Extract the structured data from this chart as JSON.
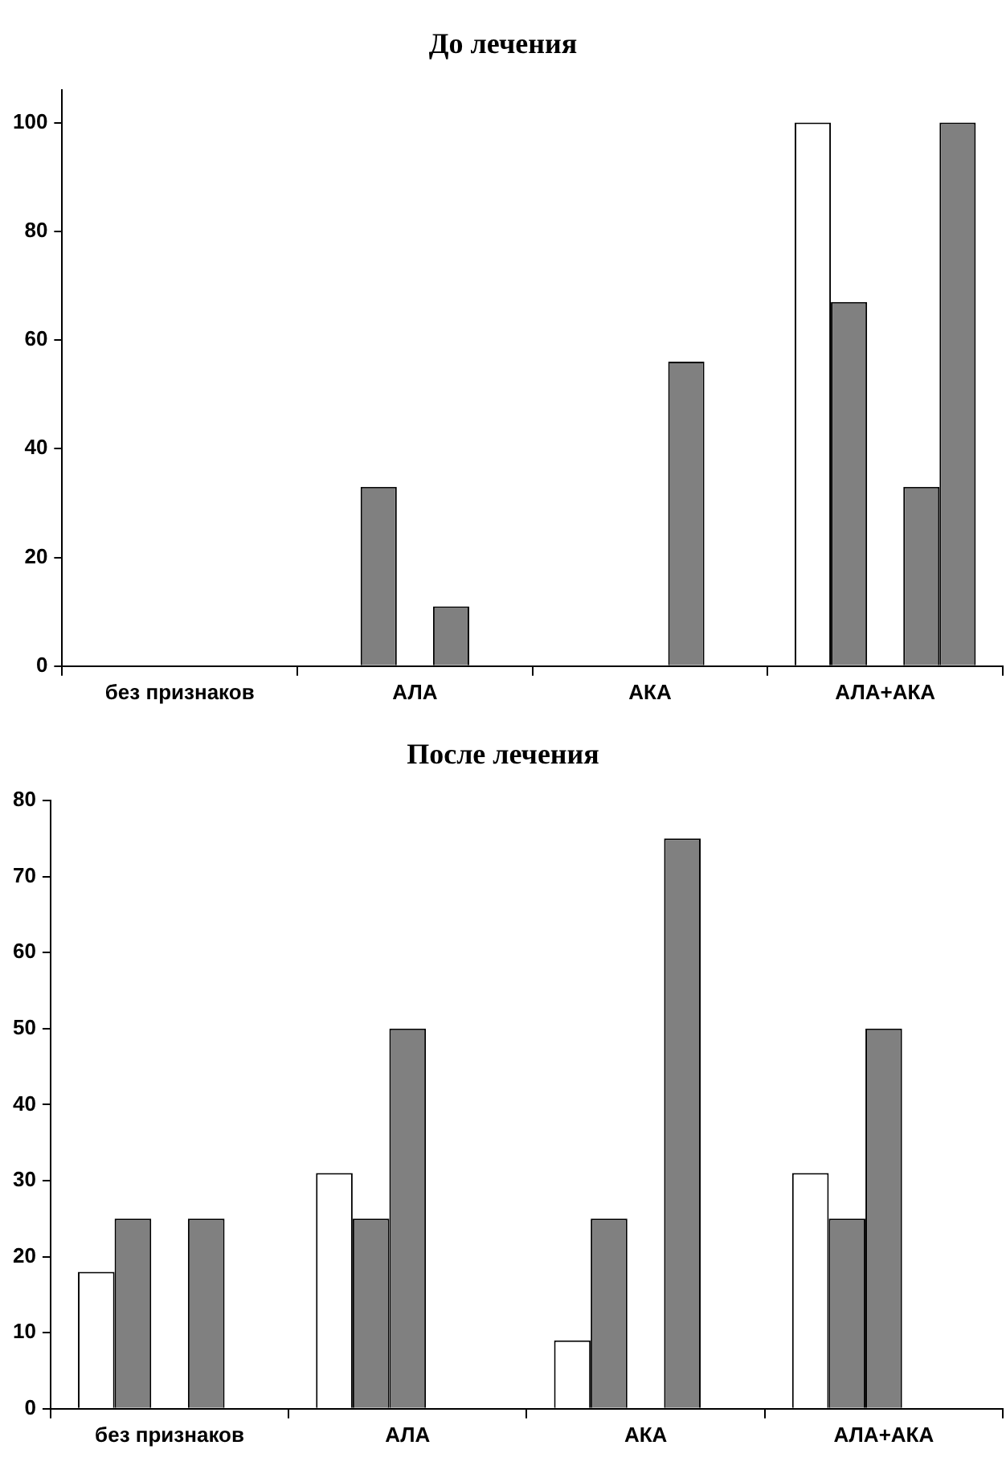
{
  "chart_data": [
    {
      "type": "bar",
      "title": "До лечения",
      "categories": [
        "без признаков",
        "АЛА",
        "АКА",
        "АЛА+АКА"
      ],
      "series": [
        {
          "color": "#ffffff",
          "values": [
            null,
            null,
            null,
            100
          ]
        },
        {
          "color": "#808080",
          "values": [
            null,
            33,
            null,
            67
          ]
        },
        {
          "color": "#808080",
          "values": [
            null,
            null,
            null,
            null
          ]
        },
        {
          "color": "#808080",
          "values": [
            null,
            11,
            56,
            33
          ]
        },
        {
          "color": "#808080",
          "values": [
            null,
            null,
            null,
            100
          ]
        }
      ],
      "ylim": [
        0,
        106
      ],
      "yticks": [
        0,
        20,
        40,
        60,
        80,
        100
      ],
      "grid": false,
      "legend": false
    },
    {
      "type": "bar",
      "title": "После лечения",
      "categories": [
        "без признаков",
        "АЛА",
        "АКА",
        "АЛА+АКА"
      ],
      "series": [
        {
          "color": "#ffffff",
          "values": [
            18,
            31,
            9,
            31
          ]
        },
        {
          "color": "#808080",
          "values": [
            25,
            25,
            25,
            25
          ]
        },
        {
          "color": "#808080",
          "values": [
            null,
            50,
            null,
            50
          ]
        },
        {
          "color": "#808080",
          "values": [
            25,
            null,
            75,
            null
          ]
        },
        {
          "color": "#808080",
          "values": [
            null,
            null,
            null,
            null
          ]
        }
      ],
      "ylim": [
        0,
        80
      ],
      "yticks": [
        0,
        10,
        20,
        30,
        40,
        50,
        60,
        70,
        80
      ],
      "grid": false,
      "legend": false
    }
  ]
}
